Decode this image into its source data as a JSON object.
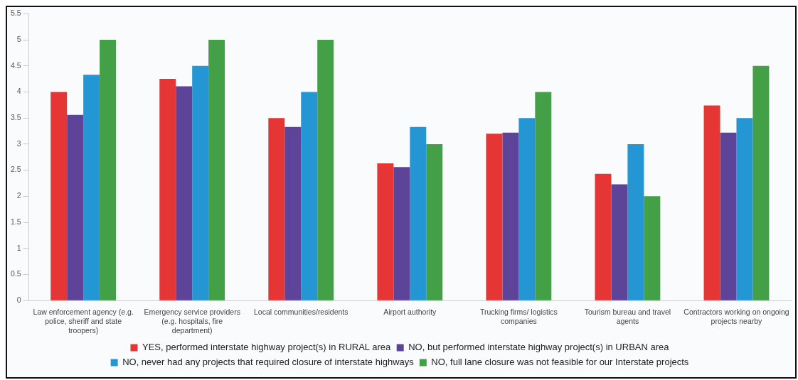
{
  "chart_data": {
    "type": "bar",
    "categories": [
      "Law enforcement agency (e.g. police, sheriff and state troopers)",
      "Emergency service providers (e.g. hospitals, fire department)",
      "Local communities/residents",
      "Airport authority",
      "Trucking firms/ logistics companies",
      "Tourism bureau and travel agents",
      "Contractors working on ongoing projects nearby"
    ],
    "series": [
      {
        "name": "YES, performed interstate highway project(s) in RURAL area",
        "color": "#e53535",
        "values": [
          4.0,
          4.25,
          3.5,
          2.63,
          3.2,
          2.43,
          3.74
        ]
      },
      {
        "name": "NO, but performed interstate highway project(s) in URBAN area",
        "color": "#5e4499",
        "values": [
          3.56,
          4.11,
          3.33,
          2.56,
          3.22,
          2.23,
          3.22
        ]
      },
      {
        "name": "NO, never had any projects that required closure of interstate highways",
        "color": "#2596d4",
        "values": [
          4.33,
          4.5,
          4.0,
          3.33,
          3.5,
          3.0,
          3.5
        ]
      },
      {
        "name": "NO, full lane closure was not feasible for our Interstate projects",
        "color": "#43a047",
        "values": [
          5.0,
          5.0,
          5.0,
          3.0,
          4.0,
          2.0,
          4.5
        ]
      }
    ],
    "ylim": [
      0,
      5.5
    ],
    "yticks": [
      0,
      0.5,
      1,
      1.5,
      2,
      2.5,
      3,
      3.5,
      4,
      4.5,
      5,
      5.5
    ],
    "grid": false,
    "legend": "bottom"
  }
}
